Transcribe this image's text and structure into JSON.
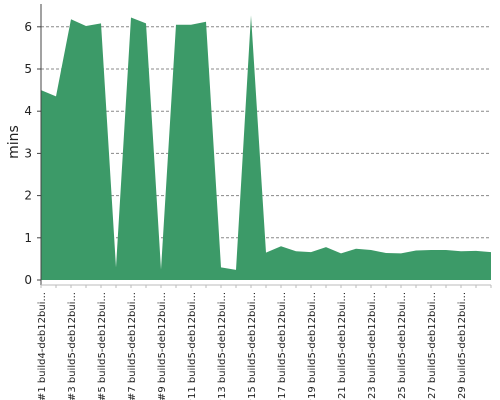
{
  "chart_data": {
    "type": "area",
    "ylabel": "mins",
    "xlabel": "",
    "ylim": [
      0,
      6.5
    ],
    "yticks": [
      "0",
      "1",
      "2",
      "3",
      "4",
      "5",
      "6"
    ],
    "grid": "horizontal dashed",
    "colors": {
      "fill": "#3c9a68",
      "grid": "#888888",
      "axis": "#444444"
    },
    "series": [
      {
        "values": [
          4.5,
          4.35,
          6.18,
          6.02,
          6.08,
          0.3,
          6.22,
          6.08,
          0.25,
          6.05,
          6.05,
          6.12,
          0.3,
          0.24,
          6.27,
          0.65,
          0.8,
          0.68,
          0.66,
          0.78,
          0.63,
          0.74,
          0.71,
          0.64,
          0.63,
          0.7,
          0.71,
          0.71,
          0.68,
          0.69,
          0.66
        ]
      }
    ],
    "x_tick_labels": [
      "#1 build4-deb12bui...",
      "#3 build5-deb12bui...",
      "#5 build5-deb12bui...",
      "#7 build5-deb12bui...",
      "#9 build5-deb12bui...",
      "#11 build5-deb12bui...",
      "#13 build5-deb12bui...",
      "#15 build5-deb12bui...",
      "#17 build5-deb12bui...",
      "#19 build5-deb12bui...",
      "#21 build5-deb12bui...",
      "#23 build5-deb12bui...",
      "#25 build5-deb12bui...",
      "#27 build5-deb12bui...",
      "#29 build5-deb12bui..."
    ]
  }
}
